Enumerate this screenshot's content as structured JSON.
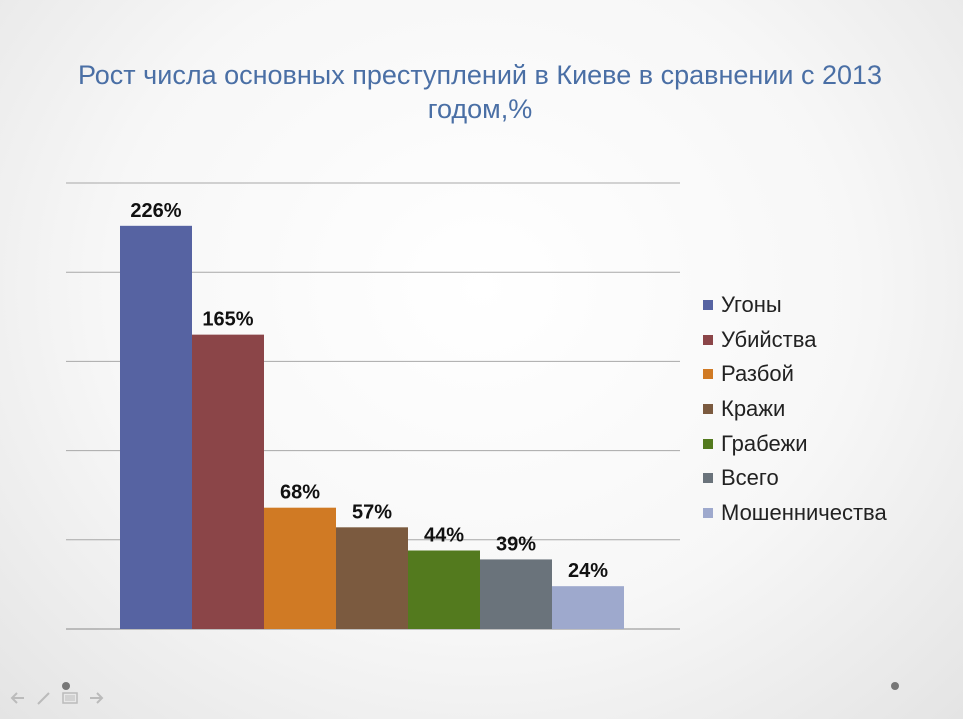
{
  "chart_data": {
    "type": "bar",
    "title": "Рост числа основных преступлений в Киеве в сравнении с 2013 годом,%",
    "categories": [
      "Угоны",
      "Убийства",
      "Разбой",
      "Кражи",
      "Грабежи",
      "Всего",
      "Мошенничества"
    ],
    "values": [
      226,
      165,
      68,
      57,
      44,
      39,
      24
    ],
    "data_labels": [
      "226%",
      "165%",
      "68%",
      "57%",
      "44%",
      "39%",
      "24%"
    ],
    "colors": [
      "#5663a2",
      "#8b4548",
      "#d07a24",
      "#7b5a3f",
      "#537a1e",
      "#6a737b",
      "#9ea9cd"
    ],
    "ylim": [
      0,
      250
    ],
    "grid": true,
    "legend_position": "right",
    "xlabel": "",
    "ylabel": ""
  }
}
